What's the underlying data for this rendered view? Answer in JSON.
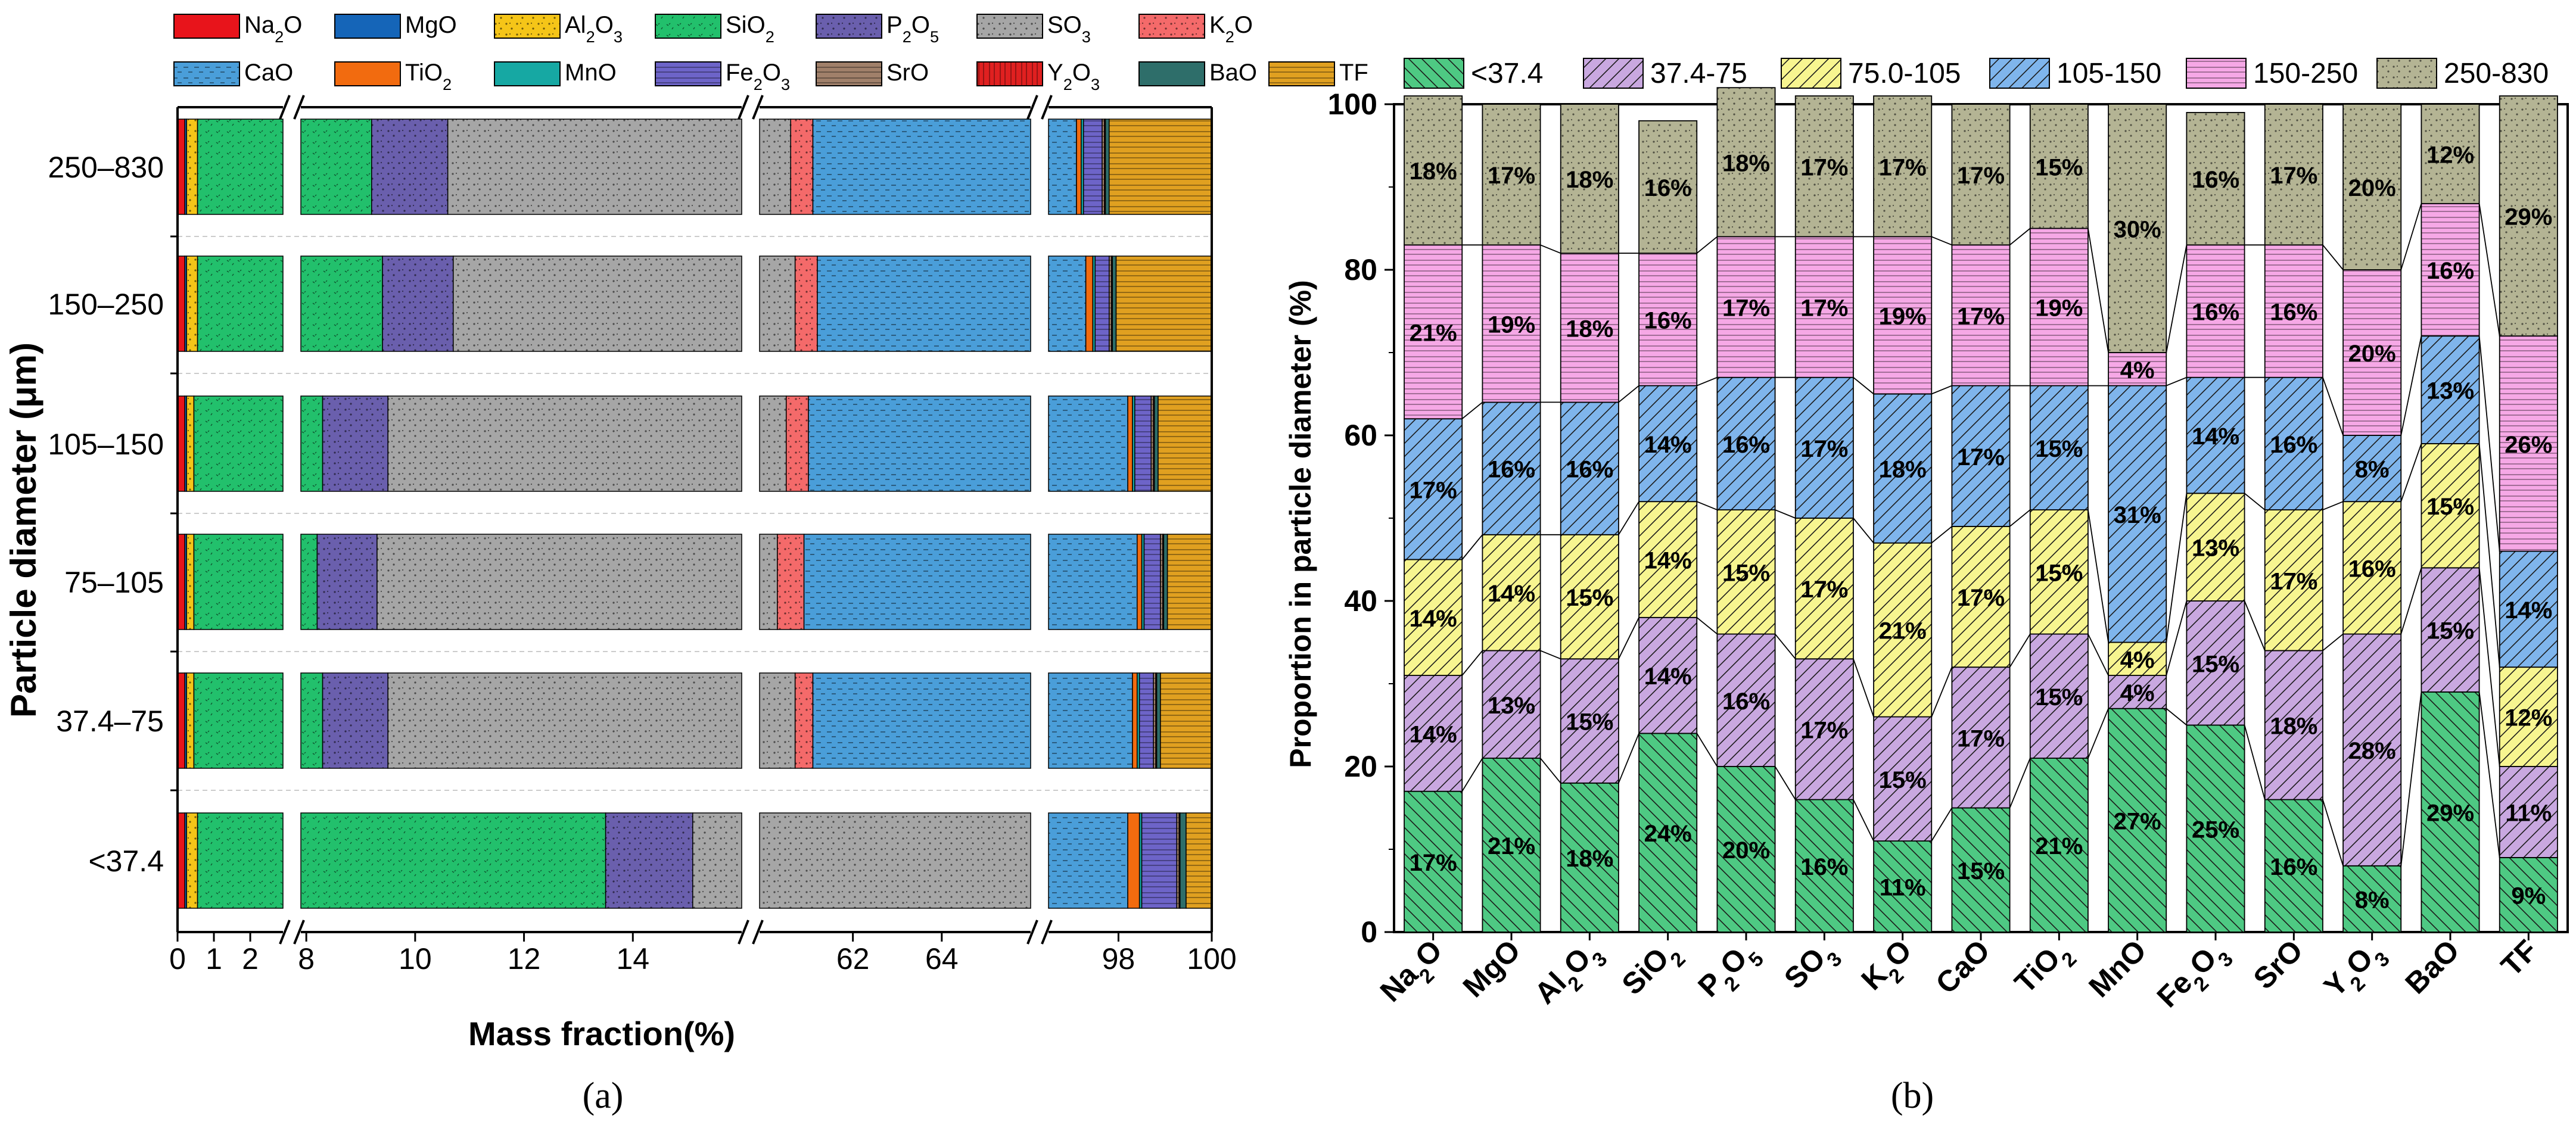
{
  "panel_a": {
    "caption": "(a)",
    "legend": [
      {
        "key": "na2o",
        "label": "Na2O",
        "color": "#e8141b",
        "pattern": "solid"
      },
      {
        "key": "mgo",
        "label": "MgO",
        "color": "#1565b8",
        "pattern": "solid"
      },
      {
        "key": "al2o3",
        "label": "Al2O3",
        "color": "#f5c518",
        "pattern": "dots"
      },
      {
        "key": "sio2",
        "label": "SiO2",
        "color": "#22c06c",
        "pattern": "specks"
      },
      {
        "key": "p2o5",
        "label": "P2O5",
        "color": "#6a5fad",
        "pattern": "dots"
      },
      {
        "key": "so3",
        "label": "SO3",
        "color": "#a6a6a6",
        "pattern": "dots"
      },
      {
        "key": "k2o",
        "label": "K2O",
        "color": "#f46a6a",
        "pattern": "dots"
      },
      {
        "key": "cao",
        "label": "CaO",
        "color": "#4a9ed9",
        "pattern": "dashes"
      },
      {
        "key": "tio2",
        "label": "TiO2",
        "color": "#f26b0f",
        "pattern": "solid"
      },
      {
        "key": "mno",
        "label": "MnO",
        "color": "#16a8a3",
        "pattern": "solid"
      },
      {
        "key": "fe2o3",
        "label": "Fe2O3",
        "color": "#6d64c8",
        "pattern": "hlines"
      },
      {
        "key": "sro",
        "label": "SrO",
        "color": "#a0806a",
        "pattern": "hlines"
      },
      {
        "key": "y2o3",
        "label": "Y2O3",
        "color": "#e02020",
        "pattern": "vlines"
      },
      {
        "key": "bao",
        "label": "BaO",
        "color": "#2e6e6a",
        "pattern": "solid"
      },
      {
        "key": "tf",
        "label": "TF",
        "color": "#e0a020",
        "pattern": "hlines"
      }
    ],
    "axis_segments": [
      {
        "ticks": [
          {
            "v": 0,
            "t": "0"
          },
          {
            "v": 1,
            "t": "1"
          },
          {
            "v": 2,
            "t": "2"
          }
        ],
        "range": [
          0,
          2.9
        ]
      },
      {
        "ticks": [
          {
            "v": 8,
            "t": "8"
          },
          {
            "v": 10,
            "t": "10"
          },
          {
            "v": 12,
            "t": "12"
          },
          {
            "v": 14,
            "t": "14"
          }
        ],
        "range": [
          7.9,
          16.0
        ]
      },
      {
        "ticks": [
          {
            "v": 62,
            "t": "62"
          },
          {
            "v": 64,
            "t": "64"
          }
        ],
        "range": [
          59.9,
          66.0
        ]
      },
      {
        "ticks": [
          {
            "v": 98,
            "t": "98"
          },
          {
            "v": 100,
            "t": "100"
          }
        ],
        "range": [
          96.5,
          100
        ]
      }
    ],
    "xlabel": "Mass fraction(%)",
    "ylabel": "Particle diameter (μm)",
    "rows": [
      "250–830",
      "150–250",
      "105–150",
      "75–105",
      "37.4–75",
      "<37.4"
    ],
    "chart_data": {
      "type": "bar",
      "orientation": "horizontal-stacked-broken-axis",
      "categories": [
        "250–830",
        "150–250",
        "105–150",
        "75–105",
        "37.4–75",
        "<37.4"
      ],
      "series_order": [
        "na2o",
        "mgo",
        "al2o3",
        "sio2",
        "p2o5",
        "so3",
        "k2o",
        "cao",
        "tio2",
        "mno",
        "fe2o3",
        "sro",
        "y2o3",
        "bao",
        "tf"
      ],
      "cumulative_boundaries": {
        "250–830": [
          0.2,
          0.25,
          0.55,
          9.2,
          10.6,
          60.6,
          61.1,
          97.1,
          97.2,
          97.25,
          97.65,
          97.7,
          97.72,
          97.8,
          100
        ],
        "150–250": [
          0.2,
          0.25,
          0.55,
          9.4,
          10.7,
          60.7,
          61.2,
          97.3,
          97.45,
          97.5,
          97.8,
          97.85,
          97.87,
          97.95,
          100
        ],
        "105–150": [
          0.2,
          0.25,
          0.45,
          8.3,
          9.5,
          60.5,
          61.0,
          98.2,
          98.3,
          98.35,
          98.7,
          98.75,
          98.77,
          98.85,
          100
        ],
        "75–105": [
          0.2,
          0.25,
          0.45,
          8.2,
          9.3,
          60.3,
          60.9,
          98.4,
          98.5,
          98.55,
          98.9,
          98.95,
          98.97,
          99.05,
          100
        ],
        "37.4–75": [
          0.2,
          0.25,
          0.45,
          8.3,
          9.5,
          60.7,
          61.1,
          98.3,
          98.4,
          98.45,
          98.75,
          98.8,
          98.82,
          98.9,
          100
        ],
        "<37.4": [
          0.2,
          0.25,
          0.55,
          13.5,
          15.1,
          66.3,
          66.6,
          98.2,
          98.45,
          98.5,
          99.25,
          99.3,
          99.32,
          99.45,
          100
        ]
      },
      "xlim": [
        0,
        100
      ]
    }
  },
  "panel_b": {
    "caption": "(b)",
    "ylabel": "Proportion in particle diameter (%)",
    "yticks": [
      "0",
      "20",
      "40",
      "60",
      "80",
      "100"
    ],
    "chart_data": {
      "type": "bar",
      "orientation": "vertical-stacked-100",
      "categories": [
        "Na2O",
        "MgO",
        "Al2O3",
        "SiO2",
        "P2O5",
        "SO3",
        "K2O",
        "CaO",
        "TiO2",
        "MnO",
        "Fe2O3",
        "SrO",
        "Y2O3",
        "BaO",
        "TF"
      ],
      "ylim": [
        0,
        100
      ],
      "series": [
        {
          "name": "<37.4",
          "color": "#4ec983",
          "pattern": "diag-right",
          "values": [
            17,
            21,
            18,
            24,
            20,
            16,
            11,
            15,
            21,
            27,
            25,
            16,
            8,
            29,
            9
          ],
          "labels": [
            "17%",
            "21%",
            "18%",
            "24%",
            "20%",
            "16%",
            "11%",
            "15%",
            "21%",
            "27%",
            "25%",
            "16%",
            "8%",
            "29%",
            "9%"
          ]
        },
        {
          "name": "37.4-75",
          "color": "#c9a8e0",
          "pattern": "diag-left",
          "values": [
            14,
            13,
            15,
            14,
            16,
            17,
            15,
            17,
            15,
            4,
            15,
            18,
            28,
            15,
            11
          ],
          "labels": [
            "14%",
            "13%",
            "15%",
            "14%",
            "16%",
            "17%",
            "15%",
            "17%",
            "15%",
            "4%",
            "15%",
            "18%",
            "28%",
            "15%",
            "11%"
          ]
        },
        {
          "name": "75.0-105",
          "color": "#f7f590",
          "pattern": "diag-left",
          "values": [
            14,
            14,
            15,
            14,
            15,
            17,
            21,
            17,
            15,
            4,
            13,
            17,
            16,
            15,
            12
          ],
          "labels": [
            "14%",
            "14%",
            "15%",
            "14%",
            "15%",
            "17%",
            "21%",
            "17%",
            "15%",
            "4%",
            "13%",
            "17%",
            "16%",
            "15%",
            "12%"
          ]
        },
        {
          "name": "105-150",
          "color": "#7fb5ec",
          "pattern": "diag-left",
          "values": [
            17,
            16,
            16,
            14,
            16,
            17,
            18,
            17,
            15,
            31,
            14,
            16,
            8,
            13,
            14
          ],
          "labels": [
            "17%",
            "16%",
            "16%",
            "14%",
            "16%",
            "17%",
            "18%",
            "17%",
            "15%",
            "31%",
            "14%",
            "16%",
            "8%",
            "13%",
            "14%"
          ]
        },
        {
          "name": "150-250",
          "color": "#f6a8e6",
          "pattern": "hlines",
          "values": [
            21,
            19,
            18,
            16,
            17,
            17,
            19,
            17,
            19,
            4,
            16,
            16,
            20,
            16,
            26
          ],
          "labels": [
            "21%",
            "19%",
            "18%",
            "16%",
            "17%",
            "17%",
            "19%",
            "17%",
            "19%",
            "4%",
            "16%",
            "16%",
            "20%",
            "16%",
            "26%"
          ]
        },
        {
          "name": "250-830",
          "color": "#b4b494",
          "pattern": "dots",
          "values": [
            18,
            17,
            18,
            16,
            18,
            17,
            17,
            17,
            15,
            30,
            16,
            17,
            20,
            12,
            29
          ],
          "labels": [
            "18%",
            "17%",
            "18%",
            "16%",
            "18%",
            "17%",
            "17%",
            "17%",
            "15%",
            "30%",
            "16%",
            "17%",
            "20%",
            "12%",
            "29%"
          ]
        }
      ]
    }
  }
}
